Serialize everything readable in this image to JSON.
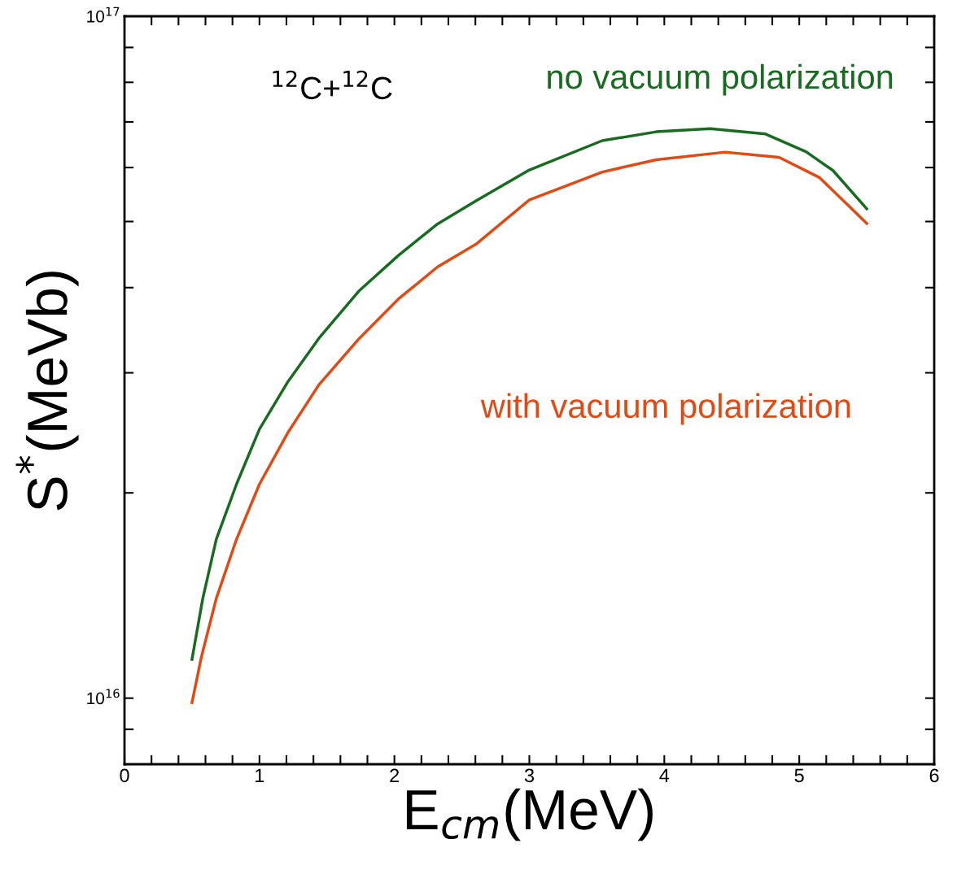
{
  "chart_data": {
    "type": "line",
    "xlabel": "E$_{cm}$(MeV)",
    "ylabel": "S$^{*}$(MeVb)",
    "annotations": [
      "$^{12}$C+$^{12}$C"
    ],
    "log": "y",
    "grid": false,
    "legend": false,
    "marker": "none",
    "line_style": "solid",
    "xlim": [
      0,
      6
    ],
    "ylim": [
      8000000000000000.0,
      1e+17
    ],
    "xticks": [
      0,
      {
        "value": 0.2,
        "label": null
      },
      {
        "value": 0.4,
        "label": null
      },
      {
        "value": 0.6,
        "label": null
      },
      {
        "value": 0.8,
        "label": null
      },
      1,
      {
        "value": 1.2,
        "label": null
      },
      {
        "value": 1.4,
        "label": null
      },
      {
        "value": 1.6,
        "label": null
      },
      {
        "value": 1.8,
        "label": null
      },
      2,
      {
        "value": 2.2,
        "label": null
      },
      {
        "value": 2.4,
        "label": null
      },
      {
        "value": 2.6,
        "label": null
      },
      {
        "value": 2.8,
        "label": null
      },
      3,
      {
        "value": 3.2,
        "label": null
      },
      {
        "value": 3.4,
        "label": null
      },
      {
        "value": 3.6,
        "label": null
      },
      {
        "value": 3.8,
        "label": null
      },
      4,
      {
        "value": 4.2,
        "label": null
      },
      {
        "value": 4.4,
        "label": null
      },
      {
        "value": 4.6,
        "label": null
      },
      {
        "value": 4.8,
        "label": null
      },
      5,
      {
        "value": 5.2,
        "label": null
      },
      {
        "value": 5.4,
        "label": null
      },
      {
        "value": 5.6,
        "label": null
      },
      {
        "value": 5.8,
        "label": null
      },
      6
    ],
    "yticks": [
      {
        "value": 9000000000000000.0,
        "label": null
      },
      {
        "value": 1e+16,
        "label": "10$^{16}$"
      },
      {
        "value": 2e+16,
        "label": null
      },
      {
        "value": 3e+16,
        "label": null
      },
      {
        "value": 4e+16,
        "label": null
      },
      {
        "value": 5e+16,
        "label": null
      },
      {
        "value": 6e+16,
        "label": null
      },
      {
        "value": 7e+16,
        "label": null
      },
      {
        "value": 8e+16,
        "label": null
      },
      {
        "value": 9e+16,
        "label": null
      },
      {
        "value": 1e+17,
        "label": "10$^{17}$"
      }
    ],
    "series": [
      {
        "name": "no vacuum polarization",
        "color": "#1a6b22",
        "x": [
          0.5,
          0.58,
          0.68,
          0.83,
          1.0,
          1.21,
          1.44,
          1.74,
          2.03,
          2.32,
          2.61,
          3.0,
          3.54,
          3.94,
          4.34,
          4.75,
          5.05,
          5.25,
          5.5
        ],
        "values": [
          1.14e+16,
          1.4e+16,
          1.71e+16,
          2.06e+16,
          2.48e+16,
          2.91e+16,
          3.37e+16,
          3.96e+16,
          4.46e+16,
          4.96e+16,
          5.37e+16,
          5.95e+16,
          6.57e+16,
          6.77e+16,
          6.84e+16,
          6.72e+16,
          6.33e+16,
          5.94e+16,
          5.22e+16
        ]
      },
      {
        "name": "with vacuum polarization",
        "color": "#e04a14",
        "x": [
          0.5,
          0.57,
          0.68,
          0.83,
          1.0,
          1.21,
          1.44,
          1.74,
          2.03,
          2.32,
          2.61,
          3.0,
          3.54,
          3.94,
          4.45,
          4.85,
          5.15,
          5.5
        ],
        "values": [
          9850000000000000.0,
          1.15e+16,
          1.4e+16,
          1.71e+16,
          2.06e+16,
          2.45e+16,
          2.88e+16,
          3.37e+16,
          3.85e+16,
          4.29e+16,
          4.64e+16,
          5.38e+16,
          5.91e+16,
          6.16e+16,
          6.32e+16,
          6.21e+16,
          5.8e+16,
          4.97e+16
        ]
      }
    ]
  }
}
